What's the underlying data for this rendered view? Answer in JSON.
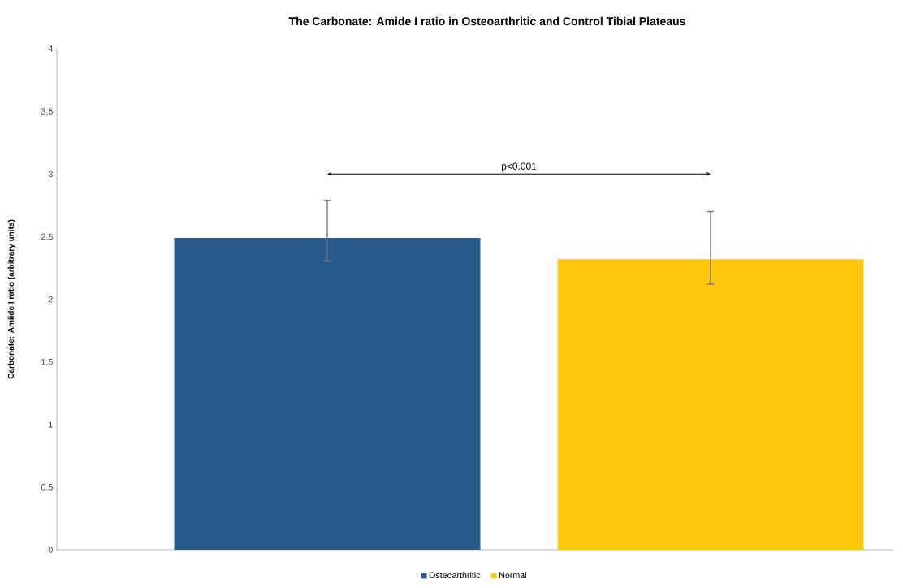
{
  "chart_data": {
    "type": "bar",
    "title": "The Carbonate:  Amide I ratio in Osteoarthritic and Control Tibial Plateaus",
    "ylabel": "Carbonate: Amiide I ratio (arbitrary units)",
    "categories": [
      null
    ],
    "series": [
      {
        "name": "Osteoarthritic",
        "color": "#285a8a",
        "values": [
          2.49
        ],
        "errors": [
          [
            2.31,
            2.79
          ]
        ]
      },
      {
        "name": "Normal",
        "color": "#ffc60a",
        "values": [
          2.32
        ],
        "errors": [
          [
            2.12,
            2.7
          ]
        ]
      }
    ],
    "ylim": [
      0,
      4
    ],
    "yticks": [
      0,
      0.5,
      1,
      1.5,
      2,
      2.5,
      3,
      3.5,
      4
    ],
    "grid": false,
    "legend": "bottom",
    "annotations": [
      "p<0.001"
    ]
  }
}
